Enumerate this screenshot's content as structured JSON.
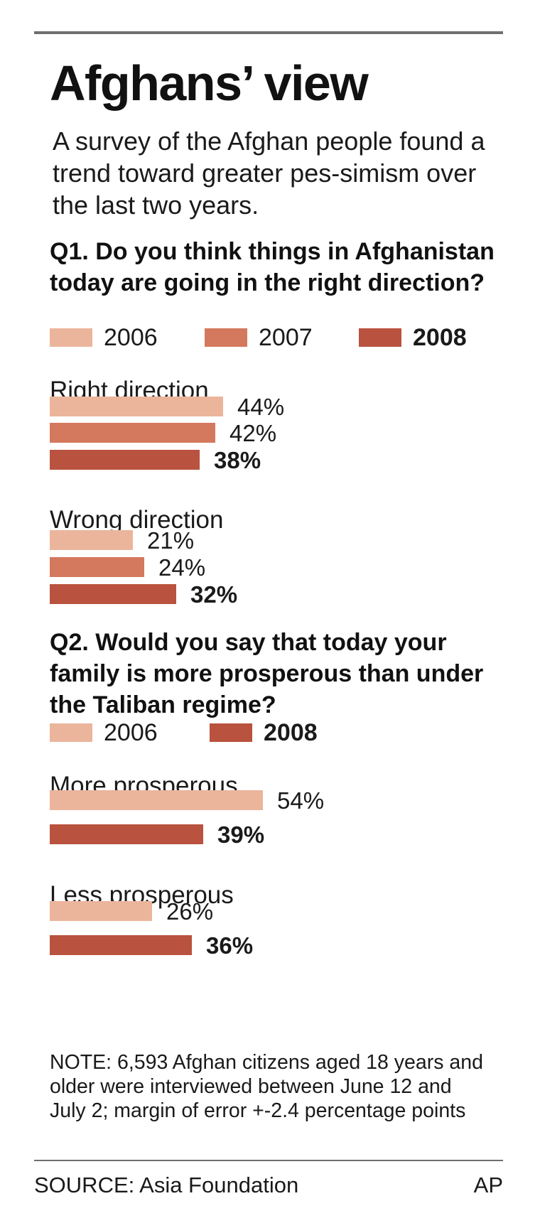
{
  "title": "Afghans’ view",
  "intro": "A survey of the Afghan people found a trend toward greater pes-simism over the last two years.",
  "colors": {
    "y2006": "#ebb59c",
    "y2007": "#d4785e",
    "y2008": "#b9523e",
    "rule": "#6f6f6f"
  },
  "note": "NOTE: 6,593 Afghan citizens aged 18 years and older were interviewed between June 12 and July 2; margin of error +-2.4 percentage points",
  "source": "SOURCE: Asia Foundation",
  "credit": "AP",
  "chart_data": [
    {
      "type": "bar",
      "title": "Q1. Do you think things in Afghanistan today are going in the right direction?",
      "categories": [
        "Right direction",
        "Wrong direction"
      ],
      "series": [
        {
          "name": "2006",
          "values": [
            44,
            21
          ],
          "labels": [
            "44%",
            "21%"
          ]
        },
        {
          "name": "2007",
          "values": [
            42,
            24
          ],
          "labels": [
            "42%",
            "24%"
          ]
        },
        {
          "name": "2008",
          "values": [
            38,
            32
          ],
          "labels": [
            "38%",
            "32%"
          ]
        }
      ],
      "unit": "%",
      "orientation": "horizontal",
      "legend": "top",
      "grid": false
    },
    {
      "type": "bar",
      "title": "Q2. Would you say that today your family is more prosperous than under the Taliban regime?",
      "categories": [
        "More prosperous",
        "Less prosperous"
      ],
      "series": [
        {
          "name": "2006",
          "values": [
            54,
            26
          ],
          "labels": [
            "54%",
            "26%"
          ]
        },
        {
          "name": "2008",
          "values": [
            39,
            36
          ],
          "labels": [
            "39%",
            "36%"
          ]
        }
      ],
      "unit": "%",
      "orientation": "horizontal",
      "legend": "top",
      "grid": false
    }
  ]
}
